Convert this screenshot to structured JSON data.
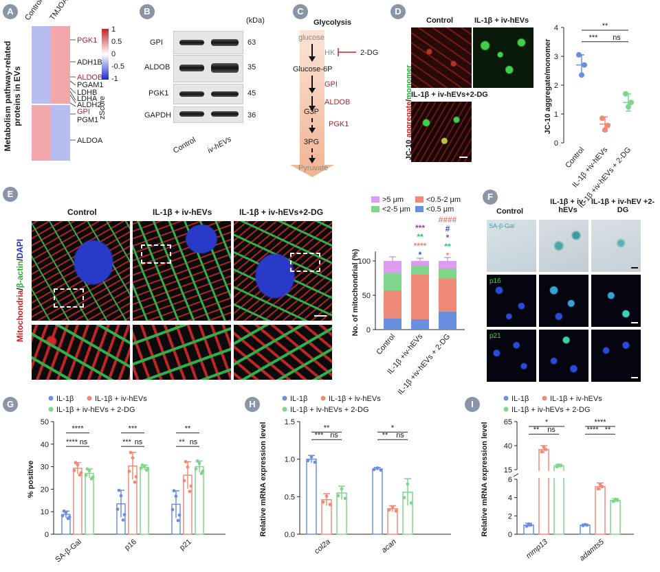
{
  "panels": {
    "a": {
      "badge": "A",
      "cols": [
        "Control",
        "TMJOA"
      ],
      "ylabel": "Metabolism pathway-related proteins in EVs",
      "legend_title": "zScore",
      "legend_ticks": [
        "1",
        "0.5",
        "0",
        "-0.5",
        "-1"
      ],
      "genes": [
        {
          "name": "PGK1",
          "red": true
        },
        {
          "name": "ADH1B",
          "red": false
        },
        {
          "name": "ALDOB",
          "red": true
        },
        {
          "name": "PGAM1",
          "red": false
        },
        {
          "name": "LDHB",
          "red": false
        },
        {
          "name": "LDHA",
          "red": false
        },
        {
          "name": "ALDH2",
          "red": false
        },
        {
          "name": "GPI",
          "red": true
        },
        {
          "name": "PGM1",
          "red": false
        },
        {
          "name": "ALDOA",
          "red": false
        }
      ]
    },
    "b": {
      "badge": "B",
      "unit": "(kDa)",
      "rows": [
        {
          "name": "GPI",
          "kda": "63"
        },
        {
          "name": "ALDOB",
          "kda": "35"
        },
        {
          "name": "PGK1",
          "kda": "45"
        },
        {
          "name": "GAPDH",
          "kda": "36"
        }
      ],
      "lanes": [
        "Control",
        "iv-hEVs"
      ]
    },
    "c": {
      "badge": "C",
      "title": "Glycolysis",
      "glucose": "glucose",
      "hk": "HK",
      "inhib": "2-DG",
      "g6p": "Glucose-6P",
      "gpi": "GPI",
      "aldob": "ALDOB",
      "g3p": "G3P",
      "pgk1": "PGK1",
      "p3g": "3PG",
      "pyr": "Pyruvate"
    },
    "d": {
      "badge": "D",
      "img_labels": [
        "Control",
        "IL-1β + iv-hEVs",
        "IL-1β + iv-hEVs+2-DG"
      ],
      "ylabel_red": "aggregate",
      "ylabel_pre": "JC-10 ",
      "ylabel_sep": "/",
      "ylabel_green": "monomer",
      "chart_ylabel": "JC-10 aggregate/monomer",
      "sig": [
        "**",
        "***",
        "ns"
      ]
    },
    "e": {
      "badge": "E",
      "img_labels": [
        "Control",
        "IL-1β + iv-hEVs",
        "IL-1β + iv-hEVs+2-DG"
      ],
      "side_red": "Mitochondria",
      "side_sep1": "/",
      "side_green": "β-actin",
      "side_sep2": "/",
      "side_blue": "DAPI",
      "legend": [
        ">5 μm",
        "<0.5-2 μm",
        "<2-5 μm",
        "<0.5 μm"
      ],
      "chart_ylabel": "No. of mitochondrial (%)",
      "stars": {
        "g2": [
          {
            "t": "***",
            "c": "#b02fb8"
          },
          {
            "t": "**",
            "c": "#2ec46a"
          },
          {
            "t": "****",
            "c": "#f08078"
          },
          {
            "t": "*",
            "c": "#2a4fcf"
          }
        ],
        "g3": [
          {
            "t": "####",
            "c": "#f08078"
          },
          {
            "t": "#",
            "c": "#2a4fcf"
          },
          {
            "t": "*",
            "c": "#b02fb8"
          },
          {
            "t": "**",
            "c": "#2ec46a"
          },
          {
            "t": "*",
            "c": "#f08078"
          }
        ]
      }
    },
    "f": {
      "badge": "F",
      "cols": [
        "Control",
        "IL-1β + iv-hEVs",
        "IL-1β + iv-hEV +2-DG"
      ],
      "rows": [
        "SA-β-Gal",
        "p16",
        "p21"
      ]
    },
    "g": {
      "badge": "G",
      "legend": [
        "IL-1β",
        "IL-1β + iv-hEVs",
        "IL-1β + iv-hEVs + 2-DG"
      ],
      "sig": [
        "****",
        "****",
        "ns",
        "***",
        "***",
        "ns",
        "**",
        "**",
        "ns"
      ]
    },
    "h": {
      "badge": "H",
      "legend": [
        "IL-1β",
        "IL-1β + iv-hEVs",
        "IL-1β + iv-hEVs + 2-DG"
      ],
      "sig": [
        "**",
        "***",
        "ns",
        "*",
        "**",
        "ns"
      ]
    },
    "i": {
      "badge": "I",
      "legend": [
        "IL-1β",
        "IL-1β + iv-hEVs",
        "IL-1β + iv-hEVs + 2-DG"
      ],
      "sig": [
        "*",
        "**",
        "ns",
        "****",
        "****",
        "**"
      ]
    }
  },
  "colors": {
    "g1": "#6b8fe0",
    "g2": "#f08a78",
    "g3": "#7fd68a"
  },
  "chart_data": [
    {
      "type": "scatter",
      "panel": "D",
      "categories": [
        "Control",
        "IL-1β +iv-hEVs",
        "IL-1β +iv-hEVs + 2-DG"
      ],
      "means": [
        2.7,
        0.65,
        1.4
      ],
      "sd": [
        0.35,
        0.25,
        0.3
      ],
      "points": [
        [
          3.05,
          2.7,
          2.35
        ],
        [
          0.85,
          0.6,
          0.45
        ],
        [
          1.7,
          1.4,
          1.25
        ]
      ],
      "ylabel": "JC-10 aggregate/monomer",
      "ylim": [
        0,
        4
      ],
      "yticks": [
        0,
        1,
        2,
        3,
        4
      ]
    },
    {
      "type": "bar",
      "panel": "E",
      "stacked": true,
      "categories": [
        "Control",
        "IL-1β +iv-hEVs",
        "IL-1β +iv-hEVs + 2-DG"
      ],
      "series": [
        {
          "name": "<0.5 μm",
          "values": [
            16,
            15,
            26
          ],
          "err": [
            3,
            5,
            4
          ]
        },
        {
          "name": "<0.5-2 μm",
          "values": [
            41,
            65,
            48
          ],
          "err": [
            2,
            4,
            5
          ]
        },
        {
          "name": "<2-5 μm",
          "values": [
            25,
            13,
            15
          ],
          "err": [
            3,
            3,
            4
          ]
        },
        {
          "name": ">5 μm",
          "values": [
            18,
            7,
            11
          ],
          "err": [
            6,
            4,
            5
          ]
        }
      ],
      "ylabel": "No. of mitochondrial (%)",
      "ylim": [
        0,
        100
      ],
      "yticks": [
        0,
        50,
        100
      ]
    },
    {
      "type": "bar",
      "panel": "G",
      "categories": [
        "SA-β-Gal",
        "p16",
        "p21"
      ],
      "series": [
        {
          "name": "IL-1β",
          "values": [
            8.8,
            13.5,
            13.3
          ],
          "err": [
            1.5,
            6,
            6
          ]
        },
        {
          "name": "IL-1β + iv-hEVs",
          "values": [
            29.3,
            30.3,
            26.2
          ],
          "err": [
            2.5,
            6,
            6
          ]
        },
        {
          "name": "IL-1β + iv-hEVs + 2-DG",
          "values": [
            27,
            29.7,
            30
          ],
          "err": [
            2,
            1,
            2.5
          ]
        }
      ],
      "ylabel": "% positive",
      "ylim": [
        0,
        50
      ],
      "yticks": [
        0,
        10,
        20,
        30,
        40,
        50
      ]
    },
    {
      "type": "bar",
      "panel": "H",
      "categories": [
        "col2a",
        "acan"
      ],
      "series": [
        {
          "name": "IL-1β",
          "values": [
            1.0,
            0.87
          ],
          "err": [
            0.05,
            0.02
          ]
        },
        {
          "name": "IL-1β + iv-hEVs",
          "values": [
            0.46,
            0.34
          ],
          "err": [
            0.08,
            0.04
          ]
        },
        {
          "name": "IL-1β + iv-hEVs + 2-DG",
          "values": [
            0.55,
            0.56
          ],
          "err": [
            0.09,
            0.18
          ]
        }
      ],
      "ylabel": "Relative mRNA expression level",
      "ylim": [
        0,
        1.5
      ],
      "yticks": [
        0.0,
        0.5,
        1.0,
        1.5
      ]
    },
    {
      "type": "bar",
      "panel": "I",
      "categories": [
        "mmp13",
        "adamts5"
      ],
      "series": [
        {
          "name": "IL-1β",
          "values": [
            1.0,
            1.0
          ],
          "err": [
            0.2,
            0.1
          ]
        },
        {
          "name": "IL-1β + iv-hEVs",
          "values": [
            36,
            5.2
          ],
          "err": [
            4,
            0.4
          ]
        },
        {
          "name": "IL-1β + iv-hEVs + 2-DG",
          "values": [
            19,
            3.7
          ],
          "err": [
            1.5,
            0.2
          ]
        }
      ],
      "ylabel": "Relative mRNA expression level",
      "axis_break": true,
      "yticks": [
        0,
        2,
        4,
        6,
        15,
        40,
        65
      ]
    }
  ]
}
